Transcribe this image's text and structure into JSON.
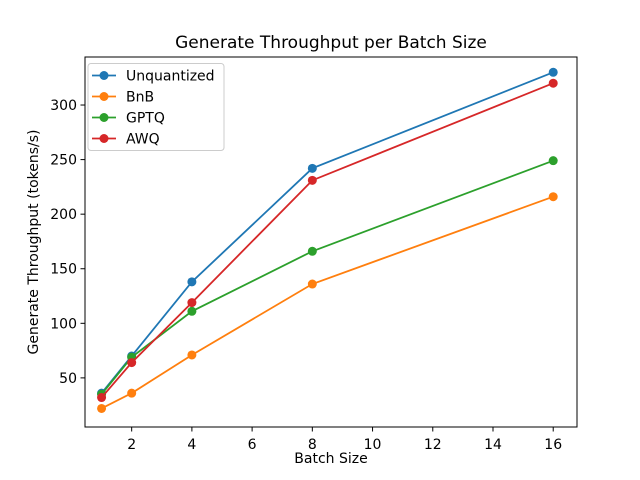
{
  "chart_data": {
    "type": "line",
    "title": "Generate Throughput per Batch Size",
    "xlabel": "Batch Size",
    "ylabel": "Generate Throughput (tokens/s)",
    "x": [
      1,
      2,
      4,
      8,
      16
    ],
    "series": [
      {
        "name": "Unquantized",
        "color": "#1f77b4",
        "values": [
          36,
          70,
          138,
          242,
          330
        ]
      },
      {
        "name": "BnB",
        "color": "#ff7f0e",
        "values": [
          22,
          36,
          71,
          136,
          216
        ]
      },
      {
        "name": "GPTQ",
        "color": "#2ca02c",
        "values": [
          35,
          69,
          111,
          166,
          249
        ]
      },
      {
        "name": "AWQ",
        "color": "#d62728",
        "values": [
          32,
          64,
          119,
          231,
          320
        ]
      }
    ],
    "x_ticks": [
      2,
      4,
      6,
      8,
      10,
      12,
      14,
      16
    ],
    "y_ticks": [
      50,
      100,
      150,
      200,
      250,
      300
    ],
    "xlim": [
      0.45,
      16.79
    ],
    "ylim": [
      5,
      344
    ],
    "grid": false,
    "marker": "o",
    "legend_position": "upper left",
    "background_color": "#ffffff",
    "text_color": "#000000",
    "spine_color": "#000000",
    "legend_border_color": "#cccccc"
  }
}
